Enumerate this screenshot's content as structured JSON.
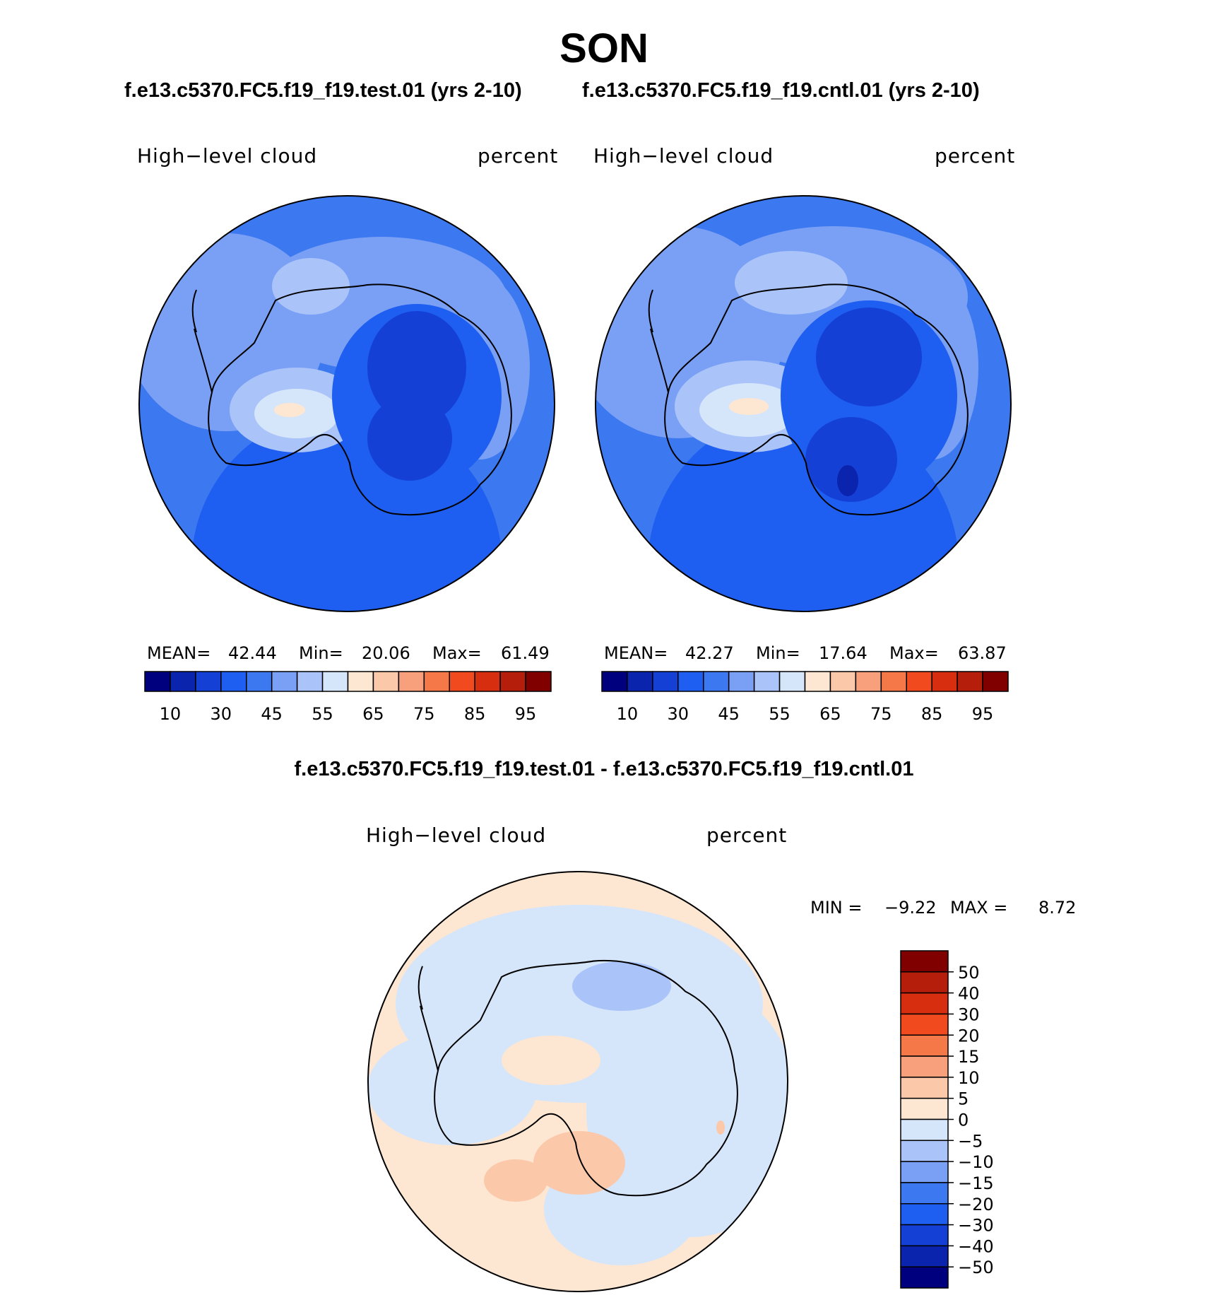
{
  "title": "SON",
  "subtitle": {
    "test": "f.e13.c5370.FC5.f19_f19.test.01 (yrs 2-10)",
    "cntl": "f.e13.c5370.FC5.f19_f19.cntl.01 (yrs 2-10)"
  },
  "diff_title": "f.e13.c5370.FC5.f19_f19.test.01 - f.e13.c5370.FC5.f19_f19.cntl.01",
  "panels": [
    {
      "variable": "High−level cloud",
      "units": "percent",
      "stats": {
        "mean_label": "MEAN=",
        "mean": "42.44",
        "min_label": "Min=",
        "min": "20.06",
        "max_label": "Max=",
        "max": "61.49"
      }
    },
    {
      "variable": "High−level cloud",
      "units": "percent",
      "stats": {
        "mean_label": "MEAN=",
        "mean": "42.27",
        "min_label": "Min=",
        "min": "17.64",
        "max_label": "Max=",
        "max": "63.87"
      }
    }
  ],
  "diff_panel": {
    "variable": "High−level cloud",
    "units": "percent",
    "stats": {
      "min_label": "MIN =",
      "min": "−9.22",
      "max_label": "MAX =",
      "max": "8.72"
    }
  },
  "colorbar_abs": {
    "colors": [
      "#00007f",
      "#0a24ad",
      "#1440d6",
      "#1e5ef0",
      "#3c78f0",
      "#7aa0f5",
      "#aac4fa",
      "#d6e6fa",
      "#fde6d2",
      "#fbc8aa",
      "#f8a07c",
      "#f57848",
      "#f04a1e",
      "#d82e10",
      "#b41e0a",
      "#800000"
    ],
    "tick_labels": [
      "10",
      "30",
      "45",
      "55",
      "65",
      "75",
      "85",
      "95"
    ]
  },
  "colorbar_diff": {
    "colors_top_to_bottom": [
      "#800000",
      "#b41e0a",
      "#d82e10",
      "#f04a1e",
      "#f57848",
      "#f8a07c",
      "#fbc8aa",
      "#fde6d2",
      "#d6e6fa",
      "#aac4fa",
      "#7aa0f5",
      "#3c78f0",
      "#1e5ef0",
      "#1440d6",
      "#0a24ad",
      "#00007f"
    ],
    "tick_labels": [
      "50",
      "40",
      "30",
      "20",
      "15",
      "10",
      "5",
      "0",
      "−5",
      "−10",
      "−15",
      "−20",
      "−30",
      "−40",
      "−50"
    ]
  }
}
